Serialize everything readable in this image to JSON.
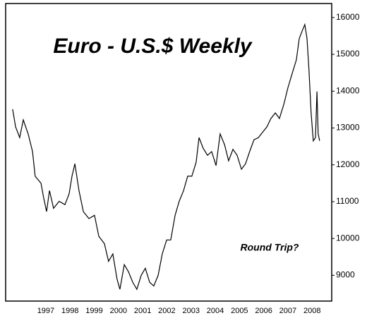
{
  "chart_data": {
    "type": "line",
    "title": "Euro - U.S.$ Weekly",
    "annotation": "Round Trip?",
    "x": [
      1995.63,
      1995.75,
      1995.92,
      1996.07,
      1996.27,
      1996.45,
      1996.56,
      1996.8,
      1996.91,
      1997.03,
      1997.15,
      1997.32,
      1997.55,
      1997.79,
      1997.96,
      1998.08,
      1998.2,
      1998.37,
      1998.55,
      1998.78,
      1999.01,
      1999.19,
      1999.42,
      1999.59,
      1999.77,
      1999.94,
      2000.06,
      2000.24,
      2000.41,
      2000.59,
      2000.76,
      2000.94,
      2001.11,
      2001.29,
      2001.46,
      2001.64,
      2001.81,
      2001.99,
      2002.16,
      2002.34,
      2002.51,
      2002.69,
      2002.86,
      2003.03,
      2003.21,
      2003.33,
      2003.5,
      2003.68,
      2003.85,
      2004.03,
      2004.2,
      2004.38,
      2004.55,
      2004.73,
      2004.9,
      2005.08,
      2005.25,
      2005.42,
      2005.6,
      2005.78,
      2005.95,
      2006.13,
      2006.3,
      2006.48,
      2006.65,
      2006.83,
      2007.0,
      2007.17,
      2007.35,
      2007.47,
      2007.58,
      2007.7,
      2007.79,
      2007.87,
      2007.96,
      2008.05,
      2008.14,
      2008.2,
      2008.25,
      2008.31
    ],
    "series": [
      {
        "color": "#000000",
        "values": [
          13510,
          13030,
          12740,
          13220,
          12840,
          12360,
          11690,
          11500,
          11110,
          10730,
          11300,
          10820,
          11010,
          10920,
          11210,
          11690,
          12030,
          11300,
          10730,
          10540,
          10630,
          10060,
          9860,
          9380,
          9580,
          8900,
          8620,
          9290,
          9100,
          8810,
          8620,
          9000,
          9190,
          8810,
          8710,
          9000,
          9580,
          9960,
          9960,
          10630,
          11010,
          11300,
          11690,
          11690,
          12070,
          12740,
          12450,
          12260,
          12360,
          11980,
          12840,
          12550,
          12110,
          12420,
          12260,
          11880,
          12030,
          12360,
          12680,
          12740,
          12880,
          13030,
          13260,
          13410,
          13260,
          13640,
          14090,
          14470,
          14850,
          15430,
          15620,
          15810,
          15430,
          14570,
          13410,
          12650,
          12740,
          13990,
          12840,
          12650
        ]
      }
    ],
    "xlim": [
      1995.34,
      2008.81
    ],
    "xticks": [
      1997,
      1998,
      1999,
      2000,
      2001,
      2002,
      2003,
      2004,
      2005,
      2006,
      2007,
      2008
    ],
    "ylim": [
      8300,
      16380
    ],
    "yticks": [
      9000,
      10000,
      11000,
      12000,
      13000,
      14000,
      15000,
      16000
    ],
    "y_axis_side": "right",
    "grid": false
  }
}
